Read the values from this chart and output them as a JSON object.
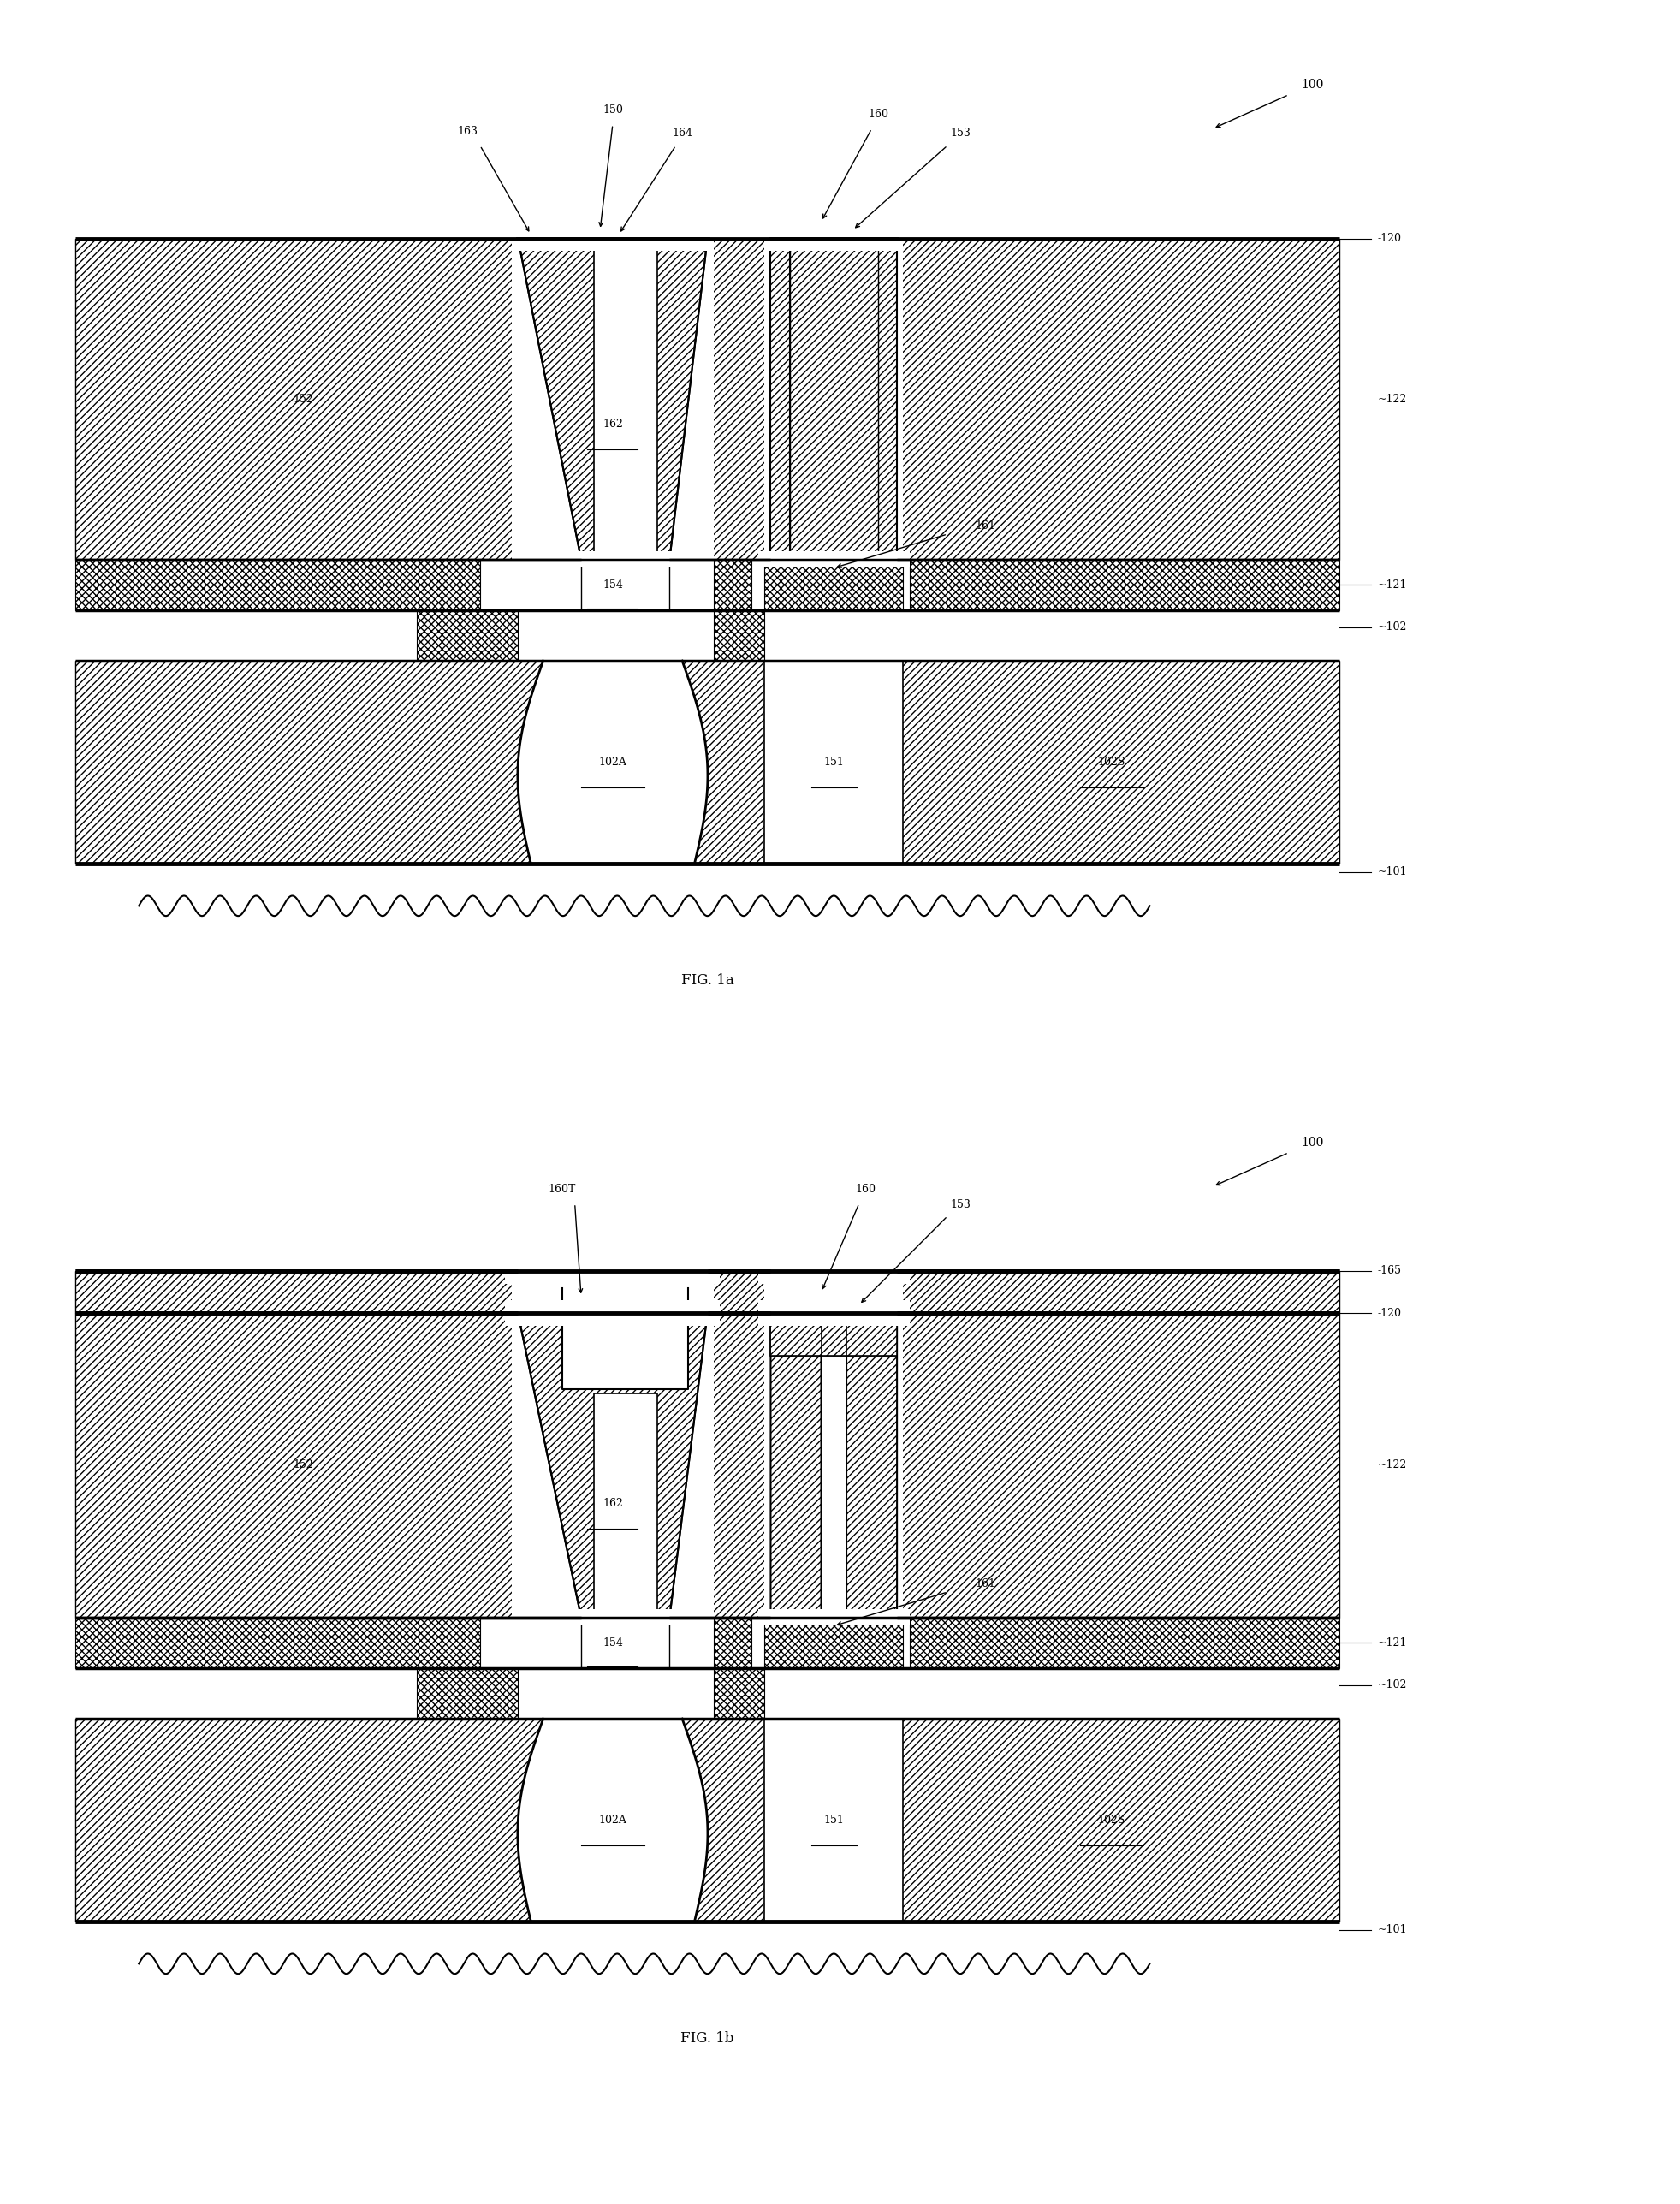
{
  "fig_width": 19.63,
  "fig_height": 25.75,
  "bg_color": "#ffffff",
  "fig1a_title": "FIG. 1a",
  "fig1b_title": "FIG. 1b",
  "labels": {
    "100": "100",
    "101": "~101",
    "102": "~102",
    "102a": "102A",
    "102s": "102S",
    "120": "-120",
    "121": "~121",
    "122": "~122",
    "150": "150",
    "151": "151",
    "152": "152",
    "153": "153",
    "154": "154",
    "160": "160",
    "161": "161",
    "162": "162",
    "163": "163",
    "164": "164",
    "160t": "160T",
    "165": "-165"
  }
}
